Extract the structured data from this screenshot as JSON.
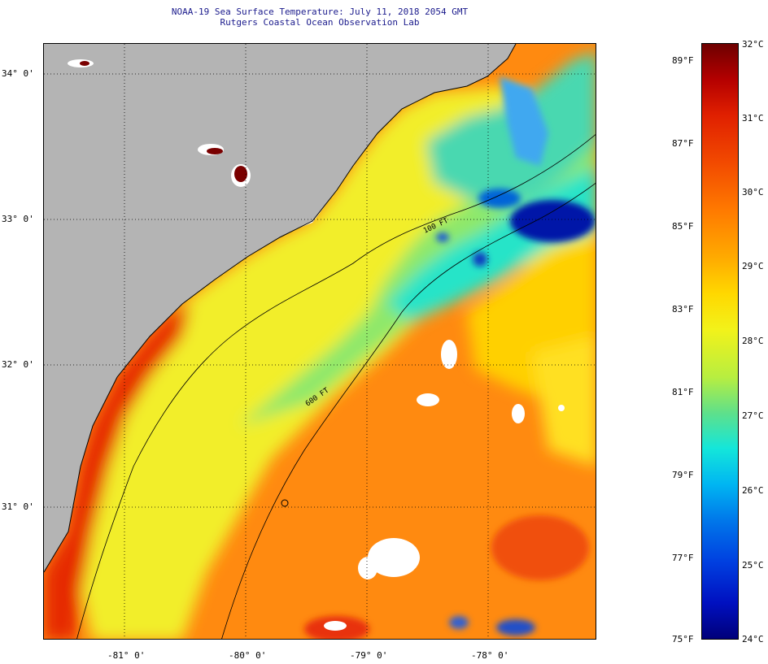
{
  "title": {
    "line1": "NOAA-19 Sea Surface Temperature:  July 11, 2018 2054 GMT",
    "line2": "Rutgers Coastal Ocean Observation Lab"
  },
  "axes": {
    "lat_labels": [
      "34° 0'",
      "33° 0'",
      "32° 0'",
      "31° 0'"
    ],
    "lon_labels": [
      "-81° 0'",
      "-80° 0'",
      "-79° 0'",
      "-78° 0'"
    ]
  },
  "contours": {
    "label_100ft": "100 FT",
    "label_600ft": "600 FT"
  },
  "colorbar": {
    "fahrenheit": [
      "89°F",
      "87°F",
      "85°F",
      "83°F",
      "81°F",
      "79°F",
      "77°F",
      "75°F"
    ],
    "celsius": [
      "32°C",
      "31°C",
      "30°C",
      "29°C",
      "28°C",
      "27°C",
      "26°C",
      "25°C",
      "24°C"
    ]
  },
  "colors": {
    "land": "#b4b4b4",
    "warm": "#ff6a00",
    "cool": "#19e0d2",
    "cold": "#0020b0"
  }
}
